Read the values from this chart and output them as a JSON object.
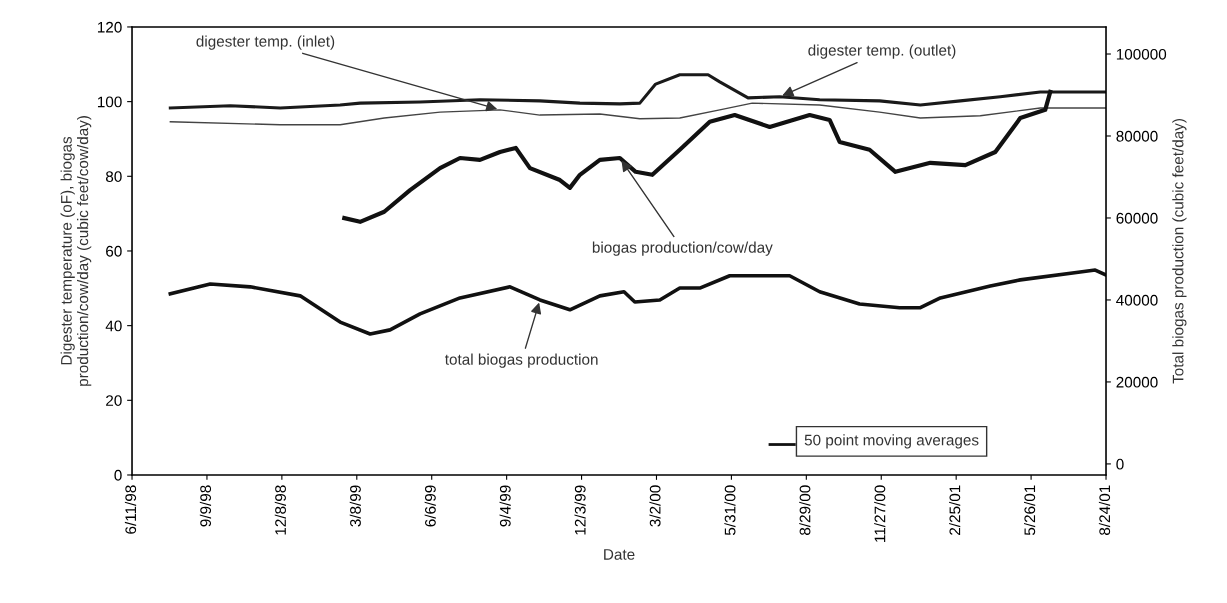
{
  "chart_data": {
    "type": "line",
    "xlabel": "Date",
    "ylabel": "Digester temperature (oF), biogas\nproduction/cow/day (cubic feet/cow/day)",
    "y2label": "Total biogas production (cubic feet/day)",
    "xlim": [
      "1998-06-11",
      "2001-08-24"
    ],
    "xticks": [
      {
        "value": "1998-06-11",
        "label": "6/11/98"
      },
      {
        "value": "1998-09-09",
        "label": "9/9/98"
      },
      {
        "value": "1998-12-08",
        "label": "12/8/98"
      },
      {
        "value": "1999-03-08",
        "label": "3/8/99"
      },
      {
        "value": "1999-06-06",
        "label": "6/6/99"
      },
      {
        "value": "1999-09-04",
        "label": "9/4/99"
      },
      {
        "value": "1999-12-03",
        "label": "12/3/99"
      },
      {
        "value": "2000-03-02",
        "label": "3/2/00"
      },
      {
        "value": "2000-05-31",
        "label": "5/31/00"
      },
      {
        "value": "2000-08-29",
        "label": "8/29/00"
      },
      {
        "value": "2000-11-27",
        "label": "11/27/00"
      },
      {
        "value": "2001-02-25",
        "label": "2/25/01"
      },
      {
        "value": "2001-05-26",
        "label": "5/26/01"
      },
      {
        "value": "2001-08-24",
        "label": "8/24/01"
      }
    ],
    "ylim": [
      0,
      120
    ],
    "yticks": [
      0,
      20,
      40,
      60,
      80,
      100,
      120
    ],
    "y2lim": [
      -2700,
      106600
    ],
    "y2ticks": [
      0,
      20000,
      40000,
      60000,
      80000,
      100000
    ],
    "grid": false,
    "annotations": [
      "50 point moving averages"
    ],
    "series": [
      {
        "name": "digester temp. (inlet)",
        "color": "#444444",
        "x": [
          "1998-07-27",
          "1998-12-06",
          "1999-02-16",
          "1999-04-10",
          "1999-06-16",
          "1999-08-27",
          "1999-10-14",
          "1999-12-25",
          "2000-02-11",
          "2000-03-30",
          "2000-05-17",
          "2000-06-25",
          "2000-09-14",
          "2000-11-25",
          "2001-01-13",
          "2001-03-26",
          "2001-06-06",
          "2001-08-24"
        ],
        "values": [
          94.6,
          93.8,
          93.8,
          95.6,
          97.2,
          97.8,
          96.4,
          96.7,
          95.4,
          95.6,
          97.8,
          99.6,
          99.1,
          97.2,
          95.6,
          96.2,
          98.3,
          98.3
        ]
      },
      {
        "name": "digester temp. (outlet)",
        "color": "#1a1a1a",
        "x": [
          "1998-07-27",
          "1998-10-07",
          "1998-12-06",
          "1999-02-16",
          "1999-03-12",
          "1999-05-23",
          "1999-08-03",
          "1999-10-14",
          "1999-12-01",
          "2000-01-18",
          "2000-02-11",
          "2000-03-01",
          "2000-03-30",
          "2000-05-03",
          "2000-05-17",
          "2000-06-20",
          "2000-07-28",
          "2000-09-14",
          "2000-11-25",
          "2001-01-13",
          "2001-03-02",
          "2001-04-19",
          "2001-06-06",
          "2001-08-24"
        ],
        "values": [
          98.3,
          98.9,
          98.3,
          99.1,
          99.6,
          99.9,
          100.5,
          100.2,
          99.6,
          99.4,
          99.6,
          104.7,
          107.2,
          107.2,
          105.3,
          101.0,
          101.3,
          100.5,
          100.2,
          99.1,
          100.2,
          101.3,
          102.6,
          102.6
        ]
      },
      {
        "name": "biogas production/cow/day",
        "color": "#111111",
        "x": [
          "1999-02-21",
          "1999-03-12",
          "1999-04-10",
          "1999-05-11",
          "1999-06-16",
          "1999-07-10",
          "1999-08-03",
          "1999-08-27",
          "1999-09-15",
          "1999-10-02",
          "1999-11-07",
          "1999-11-19",
          "1999-12-01",
          "1999-12-25",
          "2000-01-18",
          "2000-02-06",
          "2000-02-26",
          "2000-03-30",
          "2000-05-05",
          "2000-06-04",
          "2000-07-16",
          "2000-09-02",
          "2000-09-26",
          "2000-10-08",
          "2000-11-13",
          "2000-12-14",
          "2001-01-25",
          "2001-03-08",
          "2001-04-13",
          "2001-05-13",
          "2001-06-12",
          "2001-06-18"
        ],
        "values": [
          68.8,
          67.8,
          70.5,
          76.3,
          82.2,
          84.9,
          84.4,
          86.5,
          87.6,
          82.2,
          79.0,
          76.9,
          80.4,
          84.4,
          84.9,
          81.2,
          80.4,
          87.1,
          94.6,
          96.4,
          93.2,
          96.4,
          95.1,
          89.2,
          87.1,
          81.2,
          83.6,
          83.0,
          86.5,
          95.6,
          97.8,
          102.6
        ]
      },
      {
        "name": "total biogas production",
        "color": "#111111",
        "axis": "y2",
        "x": [
          "1998-07-27",
          "1998-09-13",
          "1998-10-31",
          "1998-12-30",
          "1999-02-16",
          "1999-03-24",
          "1999-04-17",
          "1999-05-23",
          "1999-07-10",
          "1999-09-08",
          "1999-10-14",
          "1999-11-19",
          "1999-12-25",
          "2000-01-23",
          "2000-02-05",
          "2000-03-06",
          "2000-03-30",
          "2000-04-23",
          "2000-05-29",
          "2000-08-09",
          "2000-09-14",
          "2000-11-01",
          "2000-12-19",
          "2001-01-13",
          "2001-02-06",
          "2001-04-07",
          "2001-05-13",
          "2001-07-24",
          "2001-08-11",
          "2001-08-24"
        ],
        "values": [
          41500,
          43900,
          43200,
          41000,
          34600,
          31700,
          32700,
          36600,
          40500,
          43200,
          40000,
          37600,
          41000,
          42000,
          39500,
          40000,
          42900,
          42900,
          45900,
          45900,
          42000,
          39000,
          38100,
          38100,
          40500,
          43400,
          44900,
          46800,
          47300,
          46100
        ]
      }
    ]
  }
}
